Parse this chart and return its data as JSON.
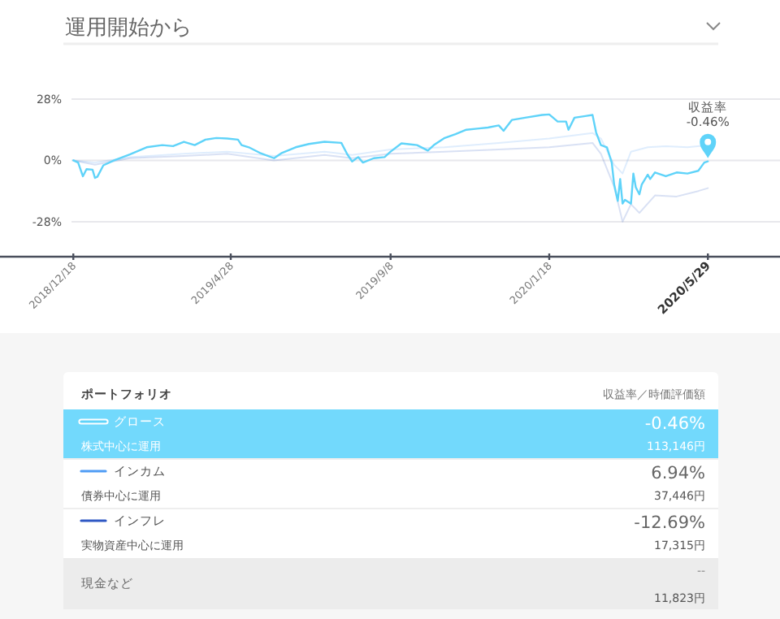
{
  "chart_data": {
    "type": "line",
    "title": "運用開始から",
    "xlim": [
      "2018-10-18",
      "2020-07-28"
    ],
    "ylim": [
      -44,
      28
    ],
    "xticks": [
      {
        "value": "2018-12-18",
        "label": "2018/12/18"
      },
      {
        "value": "2019-04-28",
        "label": "2019/4/28"
      },
      {
        "value": "2019-09-08",
        "label": "2019/9/8"
      },
      {
        "value": "2020-01-18",
        "label": "2020/1/18"
      },
      {
        "value": "2020-05-29",
        "label": "2020/5/29"
      }
    ],
    "yticks": [
      {
        "value": 28,
        "label": "28%"
      },
      {
        "value": 0,
        "label": "0%"
      },
      {
        "value": -28,
        "label": "-28%"
      }
    ],
    "grid": "y",
    "legend": "bottom",
    "series": [
      {
        "name": "インフレ",
        "color": "#2f58c4",
        "x": [
          "2018-12-18",
          "2019-01-05",
          "2019-02-03",
          "2019-03-20",
          "2019-04-25",
          "2019-06-03",
          "2019-07-15",
          "2019-08-07",
          "2019-09-08",
          "2019-10-23",
          "2019-12-07",
          "2020-01-18",
          "2020-02-23",
          "2020-03-01",
          "2020-03-12",
          "2020-03-19",
          "2020-03-26",
          "2020-04-02",
          "2020-04-15",
          "2020-05-03",
          "2020-05-21",
          "2020-05-29"
        ],
        "values": [
          0,
          -2,
          1,
          2,
          3,
          0,
          2.5,
          1,
          3,
          4,
          5,
          6,
          8,
          3,
          -12,
          -28,
          -20,
          -24,
          -16,
          -16.5,
          -14,
          -12.69
        ]
      },
      {
        "name": "インカム",
        "color": "#4f9cf5",
        "x": [
          "2018-12-18",
          "2019-01-05",
          "2019-02-03",
          "2019-03-20",
          "2019-04-25",
          "2019-06-03",
          "2019-07-15",
          "2019-08-07",
          "2019-09-08",
          "2019-10-23",
          "2019-12-07",
          "2020-01-18",
          "2020-02-23",
          "2020-03-01",
          "2020-03-12",
          "2020-03-19",
          "2020-03-26",
          "2020-04-09",
          "2020-04-24",
          "2020-05-12",
          "2020-05-29"
        ],
        "values": [
          0,
          -1,
          1.5,
          3,
          4,
          2,
          4,
          2.5,
          5,
          6,
          8,
          10,
          12.5,
          10,
          -2,
          -6,
          4,
          6,
          6.5,
          6,
          6.94
        ]
      },
      {
        "name": "グロース",
        "color": "#5fd3f9",
        "x": [
          "2018-12-18",
          "2018-12-22",
          "2018-12-26",
          "2018-12-29",
          "2019-01-03",
          "2019-01-05",
          "2019-01-07",
          "2019-01-12",
          "2019-01-21",
          "2019-02-03",
          "2019-02-17",
          "2019-03-02",
          "2019-03-11",
          "2019-03-20",
          "2019-03-29",
          "2019-04-07",
          "2019-04-16",
          "2019-04-25",
          "2019-05-04",
          "2019-05-07",
          "2019-05-13",
          "2019-05-22",
          "2019-06-03",
          "2019-06-09",
          "2019-06-21",
          "2019-07-02",
          "2019-07-15",
          "2019-07-29",
          "2019-08-03",
          "2019-08-07",
          "2019-08-12",
          "2019-08-16",
          "2019-08-25",
          "2019-09-03",
          "2019-09-08",
          "2019-09-17",
          "2019-09-30",
          "2019-10-09",
          "2019-10-14",
          "2019-10-23",
          "2019-11-01",
          "2019-11-10",
          "2019-11-19",
          "2019-11-28",
          "2019-12-07",
          "2019-12-11",
          "2019-12-18",
          "2019-12-29",
          "2020-01-12",
          "2020-01-18",
          "2020-01-25",
          "2020-02-01",
          "2020-02-03",
          "2020-02-08",
          "2020-02-17",
          "2020-02-23",
          "2020-02-26",
          "2020-03-01",
          "2020-03-06",
          "2020-03-10",
          "2020-03-12",
          "2020-03-15",
          "2020-03-17",
          "2020-03-19",
          "2020-03-21",
          "2020-03-26",
          "2020-03-28",
          "2020-03-30",
          "2020-04-02",
          "2020-04-04",
          "2020-04-09",
          "2020-04-11",
          "2020-04-15",
          "2020-04-24",
          "2020-05-03",
          "2020-05-12",
          "2020-05-21",
          "2020-05-26",
          "2020-05-29"
        ],
        "values": [
          0,
          -1,
          -7.25,
          -4,
          -4.25,
          -8,
          -7.5,
          -2.25,
          0,
          2.75,
          6,
          7,
          6.5,
          8.5,
          7,
          9.5,
          10.25,
          10,
          9.5,
          7,
          6,
          3.5,
          1,
          3.25,
          6,
          7.5,
          8.5,
          8,
          2.75,
          -0.5,
          1.5,
          -1,
          1,
          1.5,
          4,
          7.75,
          7,
          4.5,
          7,
          10.25,
          12,
          14,
          14.5,
          15,
          16,
          13.5,
          18.5,
          19.5,
          20.75,
          21,
          17.75,
          17.75,
          14,
          19.5,
          20.25,
          20.75,
          12.75,
          7,
          6,
          -1,
          -11,
          -18.5,
          -8.5,
          -19.75,
          -18,
          -19.75,
          -6,
          -12.25,
          -15.5,
          -11,
          -6.5,
          -8.5,
          -5.5,
          -7.25,
          -5.5,
          -6,
          -4.75,
          -1,
          -0.46
        ]
      }
    ],
    "annotations": [
      "収益率\n-0.46%",
      "ポートフォリオ",
      "収益率／時価評価額",
      "-0.46%",
      "株式中心に運用",
      "113,146円",
      "6.94%",
      "債券中心に運用",
      "37,446円",
      "-12.69%",
      "実物資産中心に運用",
      "17,315円",
      "現金など",
      "--",
      "11,823円"
    ]
  }
}
